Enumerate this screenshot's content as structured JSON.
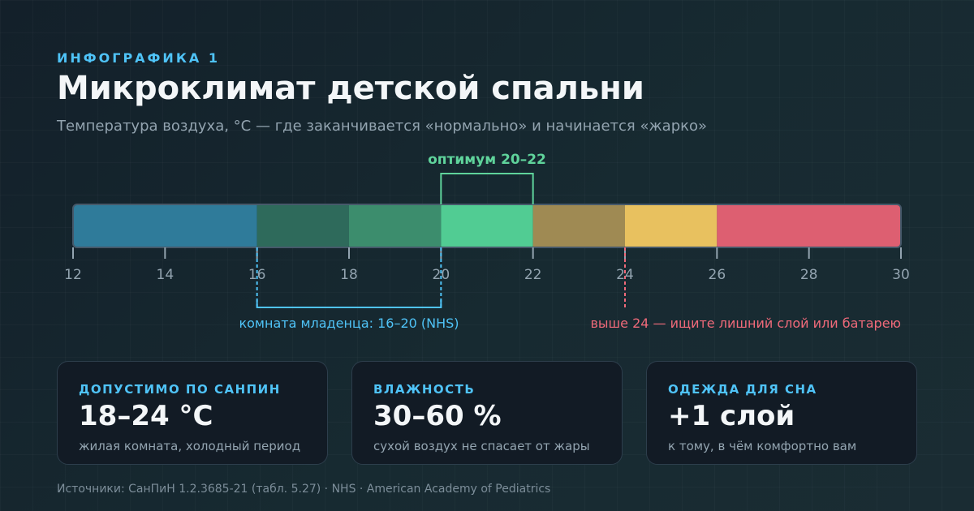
{
  "header": {
    "eyebrow": "ИНФОГРАФИКА 1",
    "title": "Микроклимат детской спальни",
    "subtitle": "Температура воздуха, °C — где заканчивается «нормально» и начинается «жарко»"
  },
  "chart_data": {
    "type": "bar",
    "title": "Микроклимат детской спальни",
    "xlabel": "Температура воздуха, °C",
    "xlim": [
      12,
      30
    ],
    "ticks": [
      12,
      14,
      16,
      18,
      20,
      22,
      24,
      26,
      28,
      30
    ],
    "segments": [
      {
        "from": 12,
        "to": 16,
        "color": "#2f7b9a"
      },
      {
        "from": 16,
        "to": 18,
        "color": "#2e6a5b"
      },
      {
        "from": 18,
        "to": 20,
        "color": "#3c8d6d"
      },
      {
        "from": 20,
        "to": 22,
        "color": "#51cc93"
      },
      {
        "from": 22,
        "to": 24,
        "color": "#9f8a53"
      },
      {
        "from": 24,
        "to": 26,
        "color": "#e8c15f"
      },
      {
        "from": 26,
        "to": 30,
        "color": "#dd5f71"
      }
    ],
    "annotations": {
      "optimum": {
        "from": 20,
        "to": 22,
        "label": "оптимум 20–22",
        "color": "#5fd39b"
      },
      "infant": {
        "from": 16,
        "to": 20,
        "label": "комната младенца: 16–20 (NHS)",
        "color": "#4fc3f7"
      },
      "hot": {
        "at": 24,
        "label": "выше 24 — ищите лишний слой или батарею",
        "color": "#f06a7a"
      }
    }
  },
  "cards": [
    {
      "label": "ДОПУСТИМО ПО САНПИН",
      "value": "18–24 °C",
      "note": "жилая комната, холодный период"
    },
    {
      "label": "ВЛАЖНОСТЬ",
      "value": "30–60 %",
      "note": "сухой воздух не спасает от жары"
    },
    {
      "label": "ОДЕЖДА ДЛЯ СНА",
      "value": "+1 слой",
      "note": "к тому, в чём комфортно вам"
    }
  ],
  "footer": {
    "sources": "Источники: СанПиН 1.2.3685-21 (табл. 5.27) · NHS · American Academy of Pediatrics"
  }
}
